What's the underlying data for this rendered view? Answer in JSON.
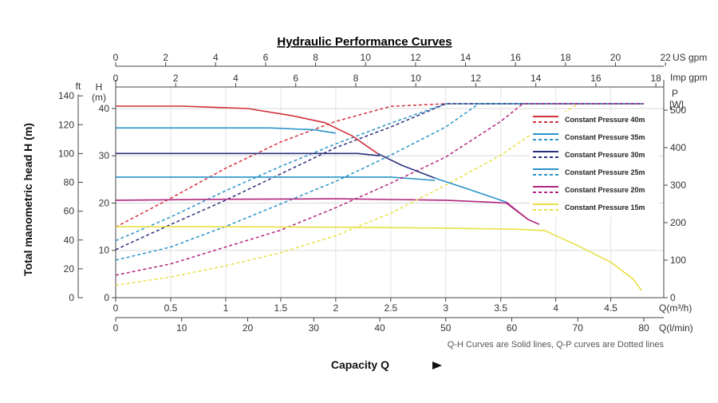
{
  "chart_data": {
    "type": "line",
    "title": "Hydraulic Performance Curves",
    "ylabel": "Total manometric head H (m)",
    "xlabel": "Capacity Q",
    "note": "Q-H Curves are Solid lines, Q-P curves are Dotted lines",
    "axes": {
      "q_m3h": {
        "label": "Q(m³/h)",
        "ticks": [
          "0",
          "0.5",
          "1",
          "1.5",
          "2",
          "2.5",
          "3",
          "3.5",
          "4",
          "4.5"
        ],
        "range": [
          0,
          4.8
        ]
      },
      "q_lmin": {
        "label": "Q(l/min)",
        "ticks": [
          "0",
          "10",
          "20",
          "30",
          "40",
          "50",
          "60",
          "70",
          "80"
        ],
        "range": [
          0,
          80
        ]
      },
      "us_gpm": {
        "label": "US gpm",
        "ticks": [
          "0",
          "2",
          "4",
          "6",
          "8",
          "10",
          "12",
          "14",
          "16",
          "18",
          "20",
          "22"
        ],
        "range": [
          0,
          22
        ]
      },
      "imp_gpm": {
        "label": "Imp gpm",
        "ticks": [
          "0",
          "2",
          "4",
          "6",
          "8",
          "10",
          "12",
          "14",
          "16",
          "18"
        ],
        "range": [
          0,
          18
        ]
      },
      "h_m": {
        "label": "H",
        "unit": "(m)",
        "ticks": [
          "0",
          "10",
          "20",
          "30",
          "40"
        ],
        "range": [
          0,
          43
        ]
      },
      "h_ft": {
        "label": "ft",
        "ticks": [
          "0",
          "20",
          "40",
          "60",
          "80",
          "100",
          "120",
          "140"
        ],
        "range": [
          0,
          141
        ]
      },
      "p_w": {
        "label": "P",
        "unit": "[W]",
        "ticks": [
          "0",
          "100",
          "200",
          "300",
          "400",
          "500"
        ],
        "range": [
          0,
          550
        ]
      }
    },
    "series": [
      {
        "name": "Constant Pressure 40m",
        "color": "#d32f3a",
        "qh": [
          [
            0,
            40.5
          ],
          [
            0.6,
            40.5
          ],
          [
            1.2,
            40.0
          ],
          [
            1.6,
            38.5
          ],
          [
            1.9,
            37.0
          ],
          [
            2.0,
            35.9
          ]
        ],
        "qp": [
          [
            0,
            188
          ],
          [
            0.5,
            265
          ],
          [
            1.0,
            345
          ],
          [
            1.5,
            415
          ],
          [
            2.0,
            470
          ],
          [
            2.5,
            510
          ],
          [
            3.0,
            517
          ],
          [
            4.8,
            517
          ]
        ]
      },
      {
        "name": "Constant Pressure 35m",
        "color": "#2a93c9",
        "qh": [
          [
            0,
            35.9
          ],
          [
            1.0,
            35.9
          ],
          [
            1.4,
            35.9
          ],
          [
            1.8,
            35.5
          ],
          [
            2.0,
            34.8
          ]
        ],
        "qp": [
          [
            0,
            152
          ],
          [
            0.5,
            215
          ],
          [
            1.0,
            285
          ],
          [
            1.5,
            350
          ],
          [
            2.0,
            410
          ],
          [
            2.5,
            465
          ],
          [
            3.0,
            517
          ],
          [
            4.8,
            517
          ]
        ]
      },
      {
        "name": "Constant Pressure 30m",
        "color": "#2b2f7c",
        "qh": [
          [
            0,
            30.5
          ],
          [
            1.5,
            30.5
          ],
          [
            2.2,
            30.5
          ],
          [
            2.4,
            30.0
          ]
        ],
        "qp": [
          [
            0,
            128
          ],
          [
            0.5,
            195
          ],
          [
            1.0,
            260
          ],
          [
            1.5,
            330
          ],
          [
            2.0,
            400
          ],
          [
            2.5,
            455
          ],
          [
            3.0,
            517
          ],
          [
            4.8,
            517
          ]
        ]
      },
      {
        "name": "Constant Pressure 25m",
        "color": "#2a93c9",
        "qh": [
          [
            0,
            25.5
          ],
          [
            1.5,
            25.5
          ],
          [
            2.5,
            25.5
          ],
          [
            2.9,
            24.8
          ]
        ],
        "qp": [
          [
            0,
            100
          ],
          [
            0.5,
            135
          ],
          [
            1.0,
            190
          ],
          [
            1.5,
            250
          ],
          [
            2.0,
            310
          ],
          [
            2.5,
            380
          ],
          [
            3.0,
            455
          ],
          [
            3.3,
            517
          ],
          [
            4.8,
            517
          ]
        ]
      },
      {
        "name": "Constant Pressure 20m",
        "color": "#b1267f",
        "qh": [
          [
            0,
            20.6
          ],
          [
            1.0,
            20.8
          ],
          [
            2.0,
            20.9
          ],
          [
            3.0,
            20.6
          ],
          [
            3.4,
            20.2
          ],
          [
            3.55,
            20.0
          ],
          [
            3.75,
            16.5
          ]
        ],
        "qp": [
          [
            0,
            60
          ],
          [
            0.5,
            90
          ],
          [
            1.0,
            135
          ],
          [
            1.5,
            180
          ],
          [
            2.0,
            240
          ],
          [
            2.5,
            305
          ],
          [
            3.0,
            375
          ],
          [
            3.5,
            470
          ],
          [
            3.7,
            517
          ],
          [
            4.8,
            517
          ]
        ]
      },
      {
        "name": "Constant Pressure 15m",
        "color": "#e8e047",
        "qh": [
          [
            0,
            15.0
          ],
          [
            1.0,
            15.0
          ],
          [
            2.0,
            14.9
          ],
          [
            3.0,
            14.7
          ],
          [
            3.6,
            14.5
          ],
          [
            3.9,
            14.2
          ],
          [
            4.2,
            11.0
          ],
          [
            4.5,
            7.5
          ],
          [
            4.7,
            4.0
          ],
          [
            4.78,
            1.5
          ]
        ],
        "qp": [
          [
            0,
            33
          ],
          [
            0.5,
            55
          ],
          [
            1.0,
            85
          ],
          [
            1.5,
            120
          ],
          [
            2.0,
            165
          ],
          [
            2.5,
            225
          ],
          [
            3.0,
            300
          ],
          [
            3.5,
            380
          ],
          [
            3.85,
            450
          ],
          [
            4.2,
            517
          ]
        ]
      }
    ],
    "envelope": {
      "color": "#2a93c9",
      "segments": [
        {
          "color": "#d32f3a",
          "points": [
            [
              2.0,
              35.9
            ],
            [
              2.15,
              34.2
            ],
            [
              2.38,
              30.5
            ]
          ]
        },
        {
          "color": "#2b2f7c",
          "points": [
            [
              2.38,
              30.5
            ],
            [
              2.6,
              28.0
            ],
            [
              2.9,
              25.3
            ]
          ]
        },
        {
          "color": "#2a93c9",
          "points": [
            [
              2.9,
              25.3
            ],
            [
              3.2,
              23.0
            ],
            [
              3.55,
              20.2
            ]
          ]
        },
        {
          "color": "#b1267f",
          "points": [
            [
              3.55,
              20.2
            ],
            [
              3.75,
              16.5
            ],
            [
              3.85,
              15.5
            ]
          ]
        }
      ]
    },
    "legend": {
      "placement": "right",
      "entries": [
        "Constant Pressure 40m",
        "Constant Pressure 35m",
        "Constant Pressure 30m",
        "Constant Pressure 25m",
        "Constant Pressure 20m",
        "Constant Pressure 15m"
      ]
    }
  }
}
